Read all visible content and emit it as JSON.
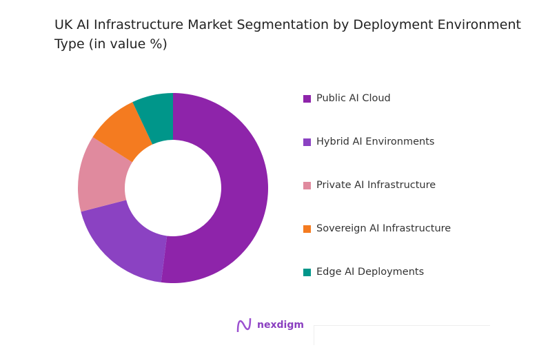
{
  "chart_data": {
    "type": "pie",
    "variant": "donut",
    "title": "UK AI Infrastructure Market Segmentation by Deployment Environment Type (in value %)",
    "categories": [
      "Public AI Cloud",
      "Hybrid AI Environments",
      "Private AI Infrastructure",
      "Sovereign AI Infrastructure",
      "Edge AI Deployments"
    ],
    "values": [
      52,
      19,
      13,
      9,
      7
    ],
    "colors": [
      "#8E24AA",
      "#8B42C2",
      "#E08A9E",
      "#F47B20",
      "#00968A"
    ],
    "legend_position": "right"
  },
  "brand": {
    "logo_text": "nexdigm"
  }
}
